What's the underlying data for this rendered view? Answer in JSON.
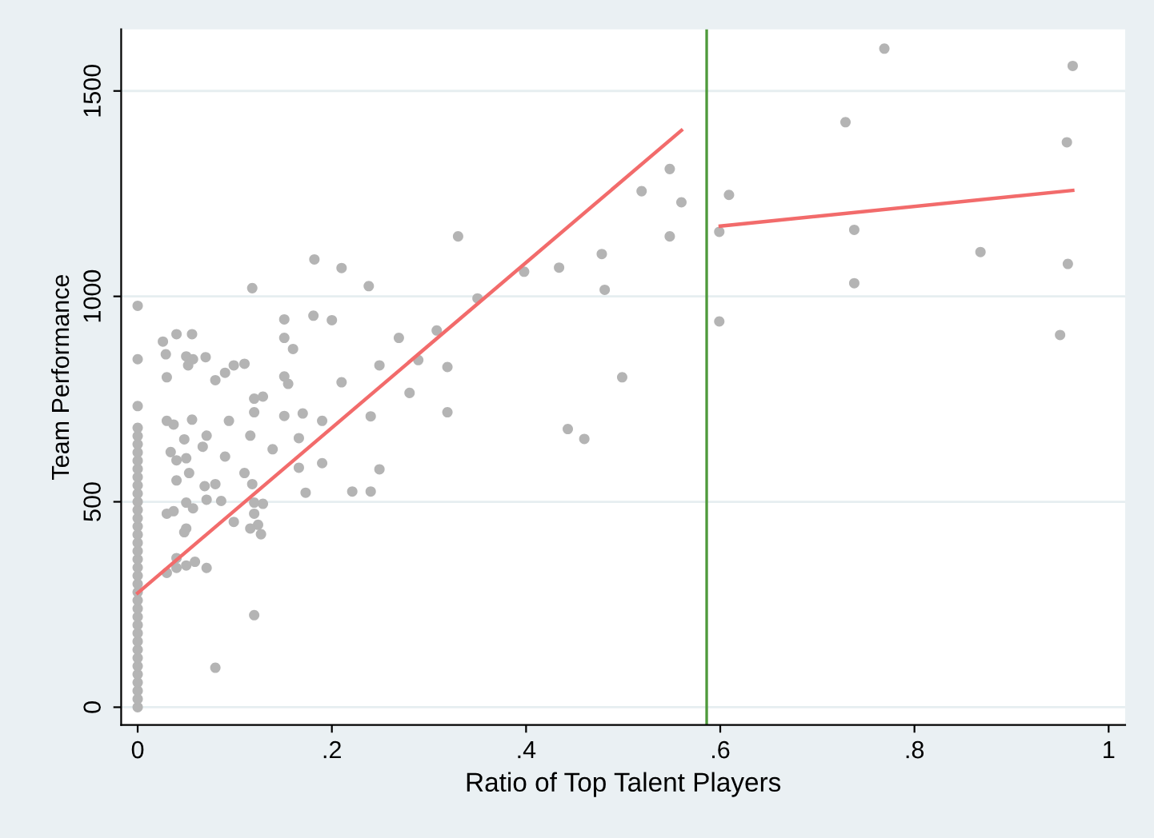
{
  "chart_data": {
    "type": "scatter",
    "xlabel": "Ratio of Top Talent Players",
    "ylabel": "Team Performance",
    "xlim": [
      -0.017,
      1.017
    ],
    "ylim": [
      -43,
      1650
    ],
    "xticks": [
      0,
      {
        "value": 0.2,
        "label": ".2"
      },
      {
        "value": 0.4,
        "label": ".4"
      },
      {
        "value": 0.6,
        "label": ".6"
      },
      {
        "value": 0.8,
        "label": ".8"
      },
      1
    ],
    "yticks": [
      0,
      500,
      1000,
      1500
    ],
    "grid": "y",
    "series": [
      {
        "marker": "circle",
        "color": "#b4b4b4",
        "x": [
          0,
          0,
          0,
          0,
          0,
          0,
          0,
          0,
          0,
          0,
          0,
          0,
          0,
          0,
          0,
          0,
          0,
          0,
          0,
          0,
          0,
          0,
          0,
          0,
          0,
          0,
          0,
          0,
          0,
          0,
          0,
          0,
          0,
          0,
          0,
          0,
          0,
          0,
          0.026,
          0.029,
          0.03,
          0.04,
          0.056,
          0.05,
          0.057,
          0.052,
          0.07,
          0.08,
          0.09,
          0.099,
          0.11,
          0.118,
          0.03,
          0.037,
          0.056,
          0.034,
          0.048,
          0.071,
          0.067,
          0.09,
          0.094,
          0.04,
          0.05,
          0.053,
          0.04,
          0.069,
          0.08,
          0.03,
          0.037,
          0.05,
          0.057,
          0.071,
          0.086,
          0.05,
          0.048,
          0.099,
          0.11,
          0.116,
          0.12,
          0.129,
          0.12,
          0.139,
          0.118,
          0.12,
          0.129,
          0.12,
          0.124,
          0.127,
          0.116,
          0.03,
          0.04,
          0.05,
          0.04,
          0.059,
          0.071,
          0.08,
          0.12,
          0.151,
          0.151,
          0.16,
          0.181,
          0.2,
          0.182,
          0.21,
          0.238,
          0.151,
          0.155,
          0.151,
          0.17,
          0.166,
          0.166,
          0.19,
          0.19,
          0.173,
          0.21,
          0.221,
          0.24,
          0.24,
          0.249,
          0.249,
          0.269,
          0.28,
          0.289,
          0.308,
          0.319,
          0.319,
          0.33,
          0.35,
          0.398,
          0.434,
          0.443,
          0.46,
          0.478,
          0.481,
          0.499,
          0.519,
          0.548,
          0.56,
          0.548,
          0.599,
          0.609,
          0.599,
          0.729,
          0.769,
          0.738,
          0.738,
          0.868,
          0.963,
          0.957,
          0.958,
          0.95
        ],
        "values": [
          977,
          847,
          733,
          0,
          20,
          40,
          60,
          80,
          100,
          120,
          140,
          160,
          180,
          200,
          220,
          240,
          260,
          280,
          300,
          320,
          340,
          360,
          380,
          400,
          420,
          440,
          460,
          480,
          500,
          520,
          540,
          560,
          580,
          600,
          620,
          640,
          660,
          680,
          890,
          859,
          803,
          908,
          908,
          854,
          847,
          832,
          852,
          796,
          814,
          832,
          836,
          1020,
          697,
          688,
          700,
          621,
          652,
          661,
          634,
          610,
          697,
          601,
          606,
          570,
          552,
          538,
          543,
          471,
          477,
          498,
          484,
          505,
          502,
          435,
          426,
          451,
          570,
          661,
          751,
          756,
          718,
          628,
          543,
          498,
          495,
          471,
          444,
          421,
          435,
          327,
          363,
          345,
          339,
          354,
          339,
          96,
          224,
          944,
          899,
          872,
          953,
          942,
          1090,
          1069,
          1025,
          805,
          787,
          709,
          715,
          655,
          583,
          697,
          594,
          522,
          791,
          525,
          708,
          525,
          579,
          832,
          899,
          765,
          845,
          917,
          828,
          718,
          1146,
          995,
          1060,
          1070,
          677,
          653,
          1103,
          1016,
          803,
          1256,
          1310,
          1229,
          1146,
          1157,
          1247,
          939,
          1424,
          1603,
          1162,
          1032,
          1108,
          1561,
          1375,
          1079,
          906
        ]
      },
      {
        "type": "line",
        "marker": "none",
        "color": "#f26b6b",
        "x": [
          0,
          0.56
        ],
        "values": [
          278,
          1404
        ]
      },
      {
        "type": "line",
        "marker": "none",
        "color": "#f26b6b",
        "x": [
          0.6,
          0.963
        ],
        "values": [
          1171,
          1258
        ]
      }
    ],
    "ref_lines": [
      {
        "axis": "x",
        "value": 0.586,
        "color": "#4f9a3c"
      }
    ]
  }
}
